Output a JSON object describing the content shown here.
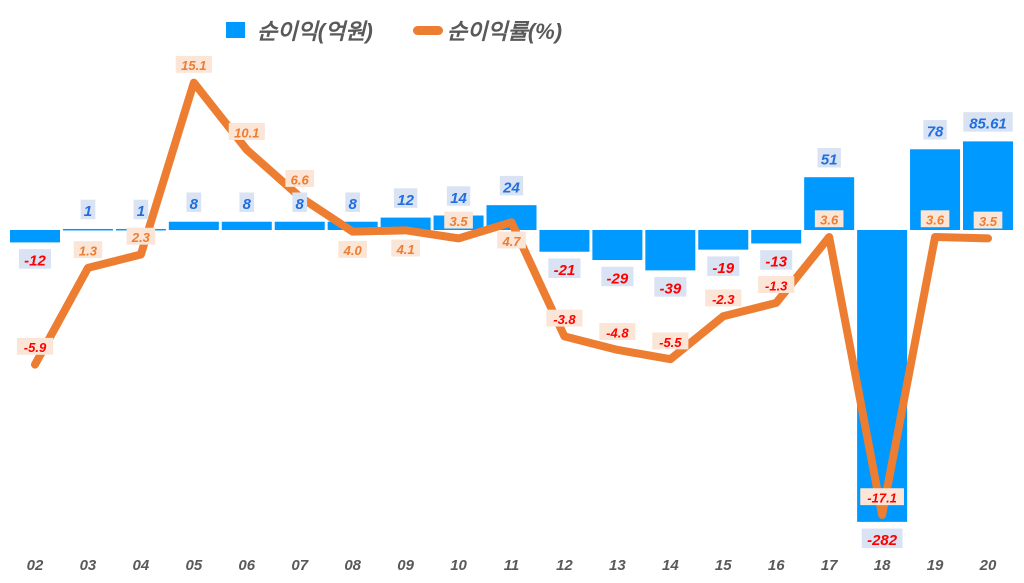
{
  "chart_data": {
    "type": "bar+line",
    "categories": [
      "02",
      "03",
      "04",
      "05",
      "06",
      "07",
      "08",
      "09",
      "10",
      "11",
      "12",
      "13",
      "14",
      "15",
      "16",
      "17",
      "18",
      "19",
      "20"
    ],
    "series": [
      {
        "name": "순이익(억원)",
        "type": "bar",
        "axis": "left",
        "color": "#0099ff",
        "values": [
          -12,
          1,
          1,
          8,
          8,
          8,
          8,
          12,
          14,
          24,
          -21,
          -29,
          -39,
          -19,
          -13,
          51,
          -282,
          78,
          85.61
        ]
      },
      {
        "name": "순이익률(%)",
        "type": "line",
        "axis": "right",
        "color": "#ed7d31",
        "values": [
          -5.9,
          1.3,
          2.3,
          15.1,
          10.1,
          6.6,
          4.0,
          4.1,
          3.5,
          4.7,
          -3.8,
          -4.8,
          -5.5,
          -2.3,
          -1.3,
          3.6,
          -17.1,
          3.6,
          3.5
        ]
      }
    ],
    "bar_ylim": [
      -300,
      180
    ],
    "line_ylim": [
      -19,
      18
    ],
    "grid": false,
    "legend": "top",
    "colors": {
      "bar_label_pos": "#1f6fe0",
      "bar_label_neg": "#ff0000",
      "bar_label_bg": "#dae3f3",
      "line_label_pos": "#ed7d31",
      "line_label_neg": "#ff0000",
      "line_label_bg": "#fbe5d6",
      "category_label": "#595959"
    }
  },
  "legend": {
    "bar": "순이익(억원)",
    "line": "순이익률(%)"
  }
}
